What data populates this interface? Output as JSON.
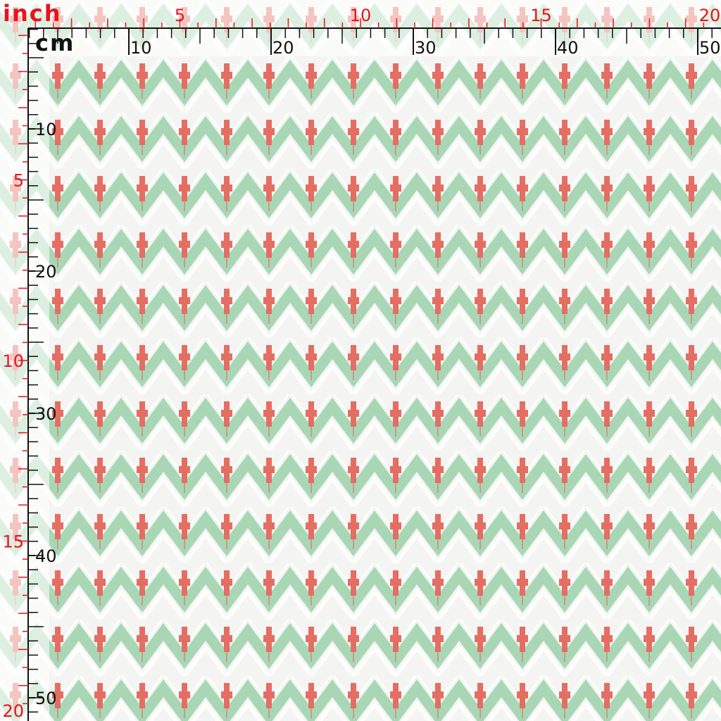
{
  "rulers": {
    "top": {
      "inch_label": "inch",
      "inch_ticks": [
        5,
        10,
        15,
        20
      ],
      "cm_label": "cm",
      "cm_ticks": [
        10,
        20,
        30,
        40,
        50
      ]
    },
    "left": {
      "inch_ticks": [
        5,
        10,
        15,
        20
      ],
      "cm_ticks": [
        10,
        20,
        30,
        40,
        50
      ]
    }
  }
}
